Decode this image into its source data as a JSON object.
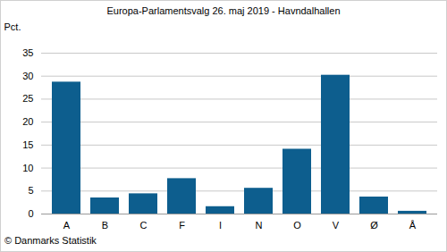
{
  "chart_data": {
    "type": "bar",
    "title": "Europa-Parlamentsvalg 26. maj 2019 - Havndalhallen",
    "ylabel": "Pct.",
    "caption": "© Danmarks Statistik",
    "categories": [
      "A",
      "B",
      "C",
      "F",
      "I",
      "N",
      "O",
      "V",
      "Ø",
      "Å"
    ],
    "values": [
      28.7,
      3.5,
      4.4,
      7.7,
      1.6,
      5.6,
      14.1,
      30.2,
      3.7,
      0.6
    ],
    "color": "#0d5e8e",
    "ylim": [
      0,
      35
    ],
    "yticks": [
      0,
      5,
      10,
      15,
      20,
      25,
      30,
      35
    ],
    "grid": true
  }
}
